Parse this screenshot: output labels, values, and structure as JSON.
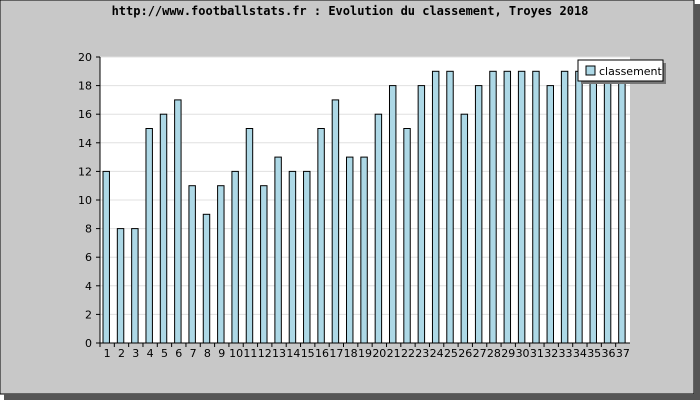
{
  "chart_data": {
    "type": "bar",
    "title": "http://www.footballstats.fr : Evolution du classement, Troyes 2018",
    "categories": [
      "1",
      "2",
      "3",
      "4",
      "5",
      "6",
      "7",
      "8",
      "9",
      "10",
      "11",
      "12",
      "13",
      "14",
      "15",
      "16",
      "17",
      "18",
      "19",
      "20",
      "21",
      "22",
      "23",
      "24",
      "25",
      "26",
      "27",
      "28",
      "29",
      "30",
      "31",
      "32",
      "33",
      "34",
      "35",
      "36",
      "37"
    ],
    "series": [
      {
        "name": "classement",
        "color": "#add8e6",
        "values": [
          12,
          8,
          8,
          15,
          16,
          17,
          11,
          9,
          11,
          12,
          15,
          11,
          13,
          12,
          12,
          15,
          17,
          13,
          13,
          16,
          18,
          15,
          18,
          19,
          19,
          16,
          18,
          19,
          19,
          19,
          19,
          18,
          19,
          19,
          19,
          19,
          19
        ]
      }
    ],
    "ylim": [
      0,
      20
    ],
    "yticks": [
      0,
      2,
      4,
      6,
      8,
      10,
      12,
      14,
      16,
      18,
      20
    ],
    "grid": true,
    "legend": "top-right"
  }
}
